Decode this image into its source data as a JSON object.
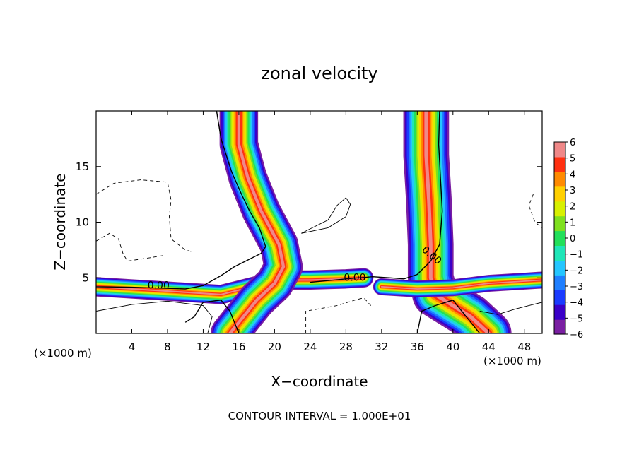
{
  "chart_data": {
    "type": "heatmap",
    "title": "zonal velocity",
    "xlabel": "X−coordinate",
    "ylabel": "Z−coordinate",
    "x_unit_left": "(×1000 m)",
    "x_unit_right": "(×1000 m)",
    "xlim": [
      0,
      50
    ],
    "ylim": [
      0,
      20
    ],
    "x_ticks": [
      4,
      8,
      12,
      16,
      20,
      24,
      28,
      32,
      36,
      40,
      44,
      48
    ],
    "y_ticks": [
      5,
      10,
      15
    ],
    "footer": "CONTOUR INTERVAL = 1.000E+01",
    "contour_labels": [
      "0.00",
      "0.00",
      "0.00"
    ],
    "colorbar": {
      "ticks": [
        "6",
        "5",
        "4",
        "3",
        "2",
        "1",
        "0",
        "−1",
        "−2",
        "−3",
        "−4",
        "−5",
        "−6"
      ],
      "range": [
        -6,
        6
      ],
      "colors": [
        "#7a1fa2",
        "#3a00c8",
        "#1a3bff",
        "#1f7fff",
        "#24c6ff",
        "#1fe6b8",
        "#22e05a",
        "#7fe01e",
        "#d8f000",
        "#ffd000",
        "#ff8a00",
        "#ff3010",
        "#f08888"
      ]
    },
    "bands": [
      {
        "name": "lower-left jet",
        "centerline": [
          [
            0,
            4.2
          ],
          [
            4,
            4.0
          ],
          [
            8,
            3.8
          ],
          [
            12,
            3.6
          ],
          [
            14,
            3.5
          ],
          [
            16,
            3.9
          ],
          [
            18,
            4.3
          ],
          [
            20,
            4.6
          ],
          [
            22,
            4.8
          ],
          [
            24,
            4.8
          ],
          [
            28,
            4.9
          ],
          [
            30,
            5.0
          ]
        ],
        "half_width": 0.8
      },
      {
        "name": "left plume",
        "centerline": [
          [
            15,
            0
          ],
          [
            16.5,
            1.5
          ],
          [
            18,
            3.0
          ],
          [
            20,
            4.5
          ],
          [
            21,
            6.0
          ],
          [
            20.5,
            8.0
          ],
          [
            18.5,
            11.0
          ],
          [
            17,
            14.0
          ],
          [
            16,
            17.0
          ],
          [
            16,
            20.0
          ]
        ],
        "half_width": 1.6
      },
      {
        "name": "right plume",
        "centerline": [
          [
            44,
            0
          ],
          [
            42,
            1.5
          ],
          [
            40,
            2.5
          ],
          [
            38,
            3.5
          ],
          [
            37.5,
            5.0
          ],
          [
            37.5,
            8.0
          ],
          [
            37.3,
            12.0
          ],
          [
            37,
            16.0
          ],
          [
            37,
            20.0
          ]
        ],
        "half_width": 1.9
      },
      {
        "name": "right shear layer",
        "centerline": [
          [
            32,
            4.2
          ],
          [
            36,
            4.0
          ],
          [
            40,
            4.1
          ],
          [
            44,
            4.5
          ],
          [
            48,
            4.7
          ],
          [
            50,
            4.8
          ]
        ],
        "half_width": 0.7
      }
    ],
    "zero_contours": [
      {
        "points": [
          [
            0,
            4.2
          ],
          [
            4,
            4.15
          ],
          [
            8,
            4.05
          ],
          [
            10,
            4.0
          ],
          [
            12,
            4.3
          ],
          [
            14,
            5.2
          ],
          [
            15.5,
            6.0
          ],
          [
            17,
            6.6
          ],
          [
            18.5,
            7.2
          ],
          [
            19,
            7.8
          ],
          [
            18.3,
            9.5
          ],
          [
            17.2,
            11.0
          ],
          [
            16.3,
            12.5
          ],
          [
            15.2,
            14.5
          ],
          [
            14,
            17.5
          ],
          [
            13.5,
            20.0
          ]
        ]
      },
      {
        "points": [
          [
            24,
            4.6
          ],
          [
            28,
            4.9
          ],
          [
            31,
            5.1
          ],
          [
            33,
            5.0
          ],
          [
            34.5,
            4.9
          ],
          [
            36,
            5.3
          ],
          [
            37.5,
            6.5
          ],
          [
            38.5,
            8.0
          ],
          [
            38.8,
            11.0
          ],
          [
            38.6,
            14.0
          ],
          [
            38.4,
            17.0
          ],
          [
            38.5,
            20.0
          ]
        ]
      },
      {
        "points": [
          [
            10,
            1.0
          ],
          [
            11,
            1.5
          ],
          [
            12,
            2.8
          ],
          [
            14,
            3.0
          ],
          [
            15,
            2.0
          ],
          [
            15.5,
            1.0
          ],
          [
            16,
            0.0
          ]
        ]
      },
      {
        "points": [
          [
            36,
            0.0
          ],
          [
            36.5,
            2.0
          ],
          [
            38,
            2.5
          ],
          [
            40,
            3.0
          ],
          [
            41.5,
            1.5
          ],
          [
            43,
            0.0
          ]
        ]
      }
    ],
    "positive_contours": [
      {
        "points": [
          [
            23,
            9.0
          ],
          [
            26,
            9.5
          ],
          [
            28,
            10.5
          ],
          [
            28.5,
            11.6
          ],
          [
            28,
            12.2
          ],
          [
            27,
            11.5
          ],
          [
            26,
            10.2
          ],
          [
            24,
            9.4
          ],
          [
            23,
            9.0
          ]
        ]
      },
      {
        "points": [
          [
            0,
            2.0
          ],
          [
            4,
            2.6
          ],
          [
            8,
            2.9
          ],
          [
            12,
            2.5
          ],
          [
            13,
            1.5
          ],
          [
            12.5,
            0.0
          ]
        ]
      },
      {
        "points": [
          [
            43,
            2.0
          ],
          [
            45,
            1.7
          ],
          [
            47,
            2.2
          ],
          [
            48.5,
            2.5
          ],
          [
            50,
            2.8
          ]
        ]
      }
    ],
    "negative_contours": [
      {
        "points": [
          [
            0,
            12.5
          ],
          [
            2,
            13.5
          ],
          [
            5,
            13.8
          ],
          [
            8,
            13.6
          ],
          [
            8.4,
            12.0
          ],
          [
            8.2,
            10.5
          ],
          [
            8.4,
            8.5
          ],
          [
            10,
            7.5
          ],
          [
            11,
            7.3
          ]
        ]
      },
      {
        "points": [
          [
            0,
            8.3
          ],
          [
            1.5,
            9.0
          ],
          [
            2.5,
            8.5
          ],
          [
            3,
            7.2
          ],
          [
            3.5,
            6.5
          ],
          [
            6,
            6.8
          ],
          [
            7.5,
            7.0
          ]
        ]
      },
      {
        "points": [
          [
            23.5,
            0.0
          ],
          [
            23.5,
            2.0
          ],
          [
            27,
            2.5
          ],
          [
            29,
            3.0
          ],
          [
            30,
            3.2
          ],
          [
            30.8,
            2.5
          ]
        ]
      },
      {
        "points": [
          [
            49,
            12.5
          ],
          [
            48.5,
            11.5
          ],
          [
            49.2,
            10.0
          ],
          [
            50,
            9.5
          ]
        ]
      }
    ]
  }
}
